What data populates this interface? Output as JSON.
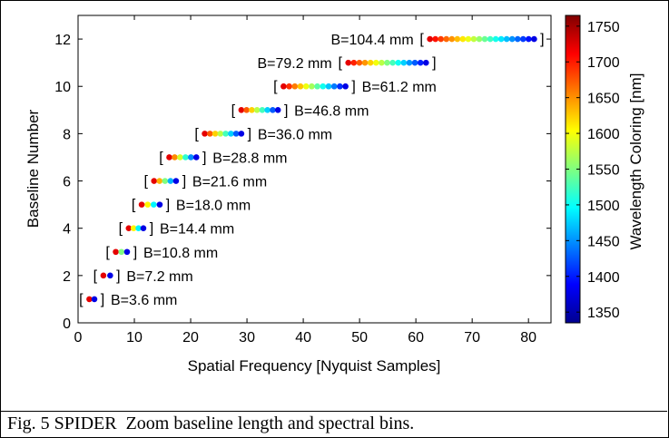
{
  "caption": "Fig. 5 SPIDER  Zoom baseline length and spectral bins.",
  "chart_data": {
    "type": "scatter",
    "xlabel": "Spatial Frequency [Nyquist Samples]",
    "ylabel": "Baseline Number",
    "xlim": [
      0,
      84
    ],
    "ylim": [
      0,
      13
    ],
    "xticks": [
      0,
      10,
      20,
      30,
      40,
      50,
      60,
      70,
      80
    ],
    "yticks": [
      0,
      2,
      4,
      6,
      8,
      10,
      12
    ],
    "grid": false,
    "colorbar": {
      "label": "Wavelength Coloring [nm]",
      "range": [
        1335,
        1765
      ],
      "ticks": [
        1350,
        1400,
        1450,
        1500,
        1550,
        1600,
        1650,
        1700,
        1750
      ],
      "colormap": "jet"
    },
    "series": [
      {
        "baseline": 1,
        "label": "B=3.6 mm",
        "x_start": 2.0,
        "x_end": 2.9
      },
      {
        "baseline": 2,
        "label": "B=7.2 mm",
        "x_start": 4.5,
        "x_end": 5.7
      },
      {
        "baseline": 3,
        "label": "B=10.8 mm",
        "x_start": 6.7,
        "x_end": 8.7
      },
      {
        "baseline": 4,
        "label": "B=14.4 mm",
        "x_start": 9.0,
        "x_end": 11.6
      },
      {
        "baseline": 5,
        "label": "B=18.0 mm",
        "x_start": 11.3,
        "x_end": 14.5
      },
      {
        "baseline": 6,
        "label": "B=21.6 mm",
        "x_start": 13.5,
        "x_end": 17.4
      },
      {
        "baseline": 7,
        "label": "B=28.8 mm",
        "x_start": 16.2,
        "x_end": 21.0
      },
      {
        "baseline": 8,
        "label": "B=36.0 mm",
        "x_start": 22.5,
        "x_end": 29.0
      },
      {
        "baseline": 9,
        "label": "B=46.8 mm",
        "x_start": 29.0,
        "x_end": 35.5
      },
      {
        "baseline": 10,
        "label": "B=61.2 mm",
        "x_start": 36.5,
        "x_end": 47.5
      },
      {
        "baseline": 11,
        "label": "B=79.2 mm",
        "x_start": 48.0,
        "x_end": 61.8
      },
      {
        "baseline": 12,
        "label": "B=104.4 mm",
        "x_start": 62.5,
        "x_end": 81.0
      }
    ]
  }
}
